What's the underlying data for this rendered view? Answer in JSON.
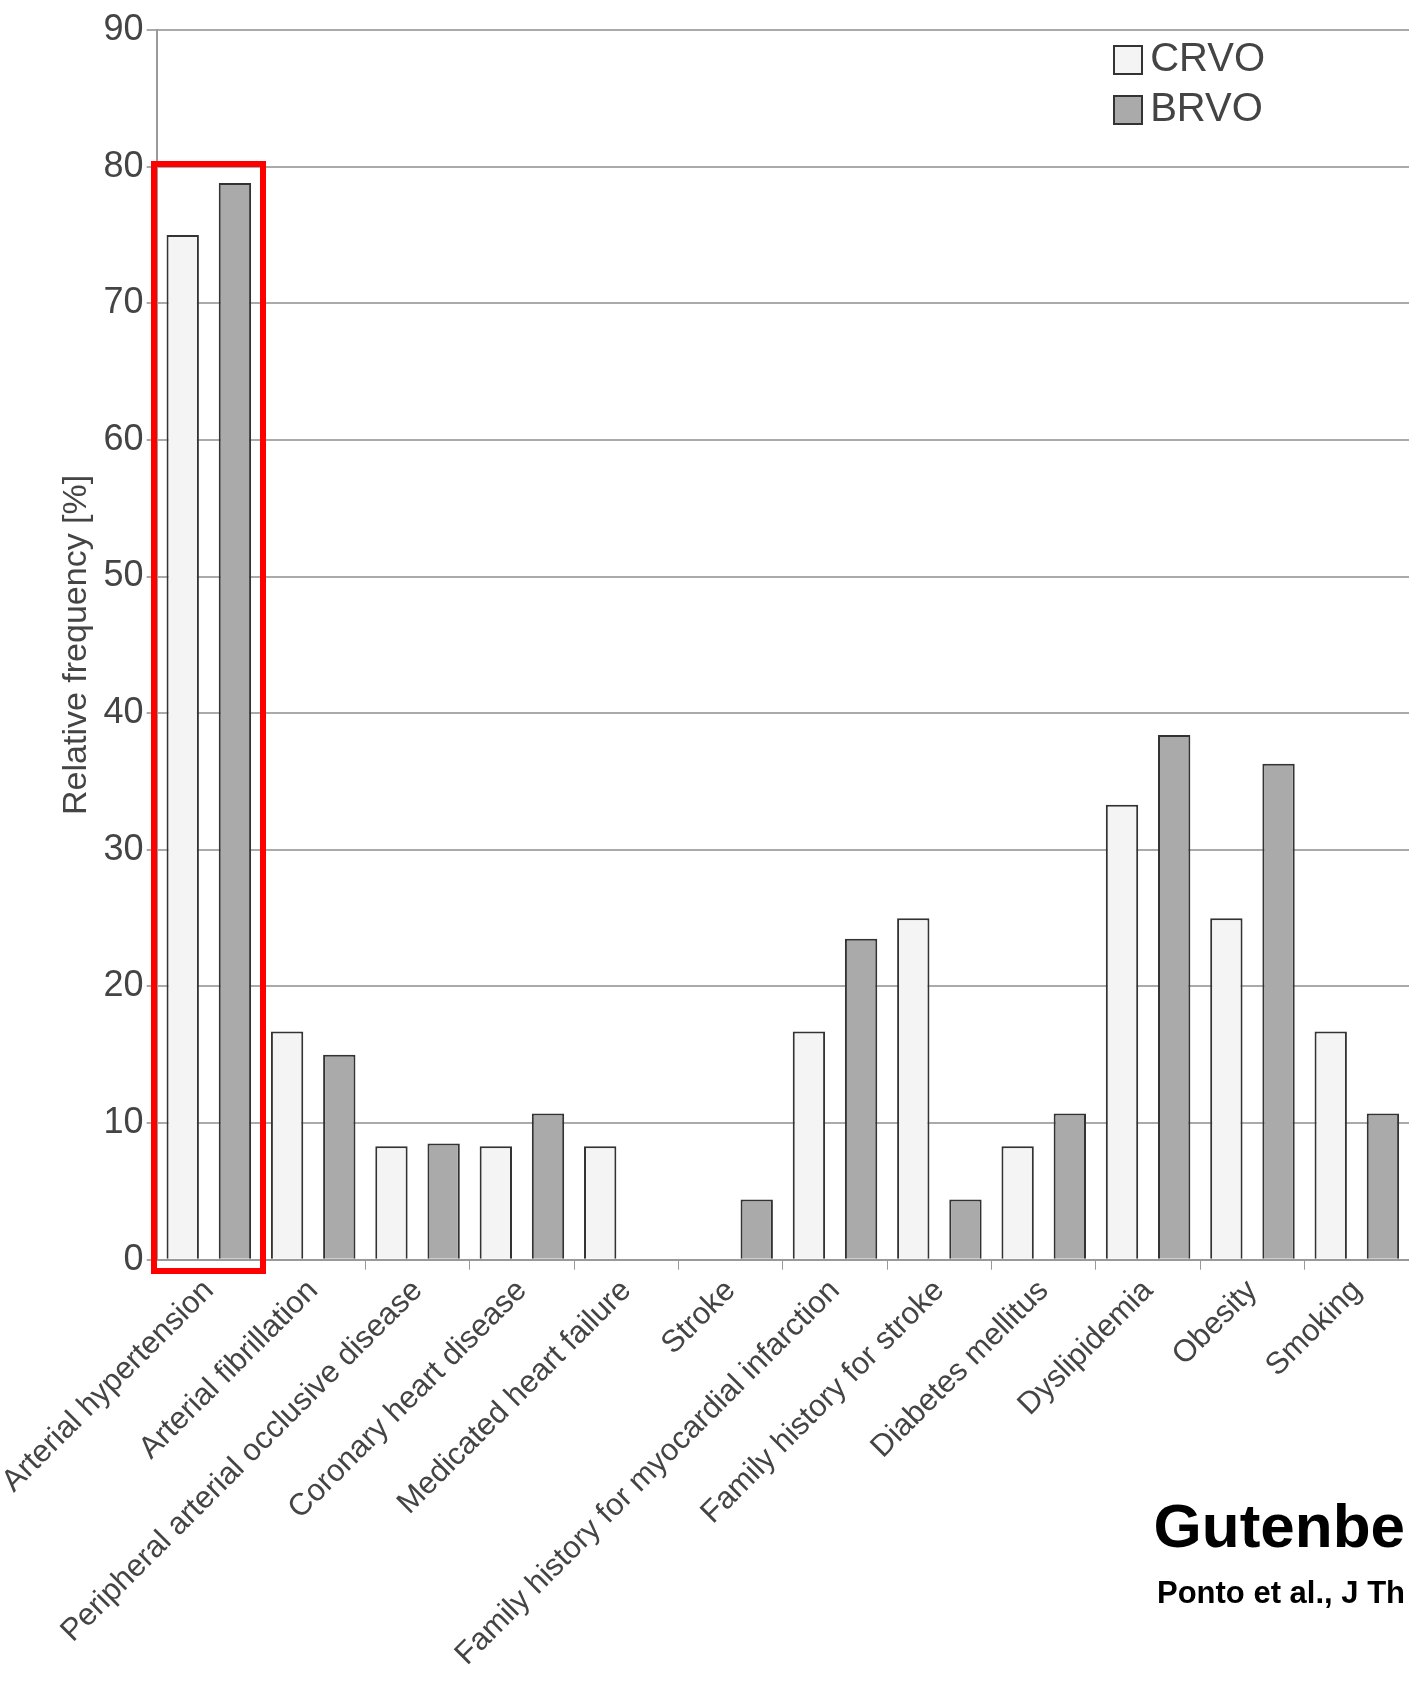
{
  "chart_data": {
    "type": "bar",
    "ylabel": "Relative frequency [%]",
    "categories": [
      "Arterial hypertension",
      "Arterial fibrillation",
      "Peripheral arterial occlusive disease",
      "Coronary heart disease",
      "Medicated heart failure",
      "Stroke",
      "Family history for myocardial infarction",
      "Family history for stroke",
      "Diabetes mellitus",
      "Dyslipidemia",
      "Obesity",
      "Smoking"
    ],
    "series": [
      {
        "name": "CRVO",
        "color": "#f4f4f4",
        "values": [
          75,
          16.7,
          8.3,
          8.3,
          8.3,
          0,
          16.7,
          25,
          8.3,
          33.3,
          25,
          16.7
        ]
      },
      {
        "name": "BRVO",
        "color": "#aaaaaa",
        "values": [
          78.8,
          15,
          8.5,
          10.7,
          0,
          4.4,
          23.5,
          4.4,
          10.7,
          38.4,
          36.3,
          10.7
        ]
      }
    ],
    "ylim": [
      0,
      90
    ],
    "yticks": [
      0,
      10,
      20,
      30,
      40,
      50,
      60,
      70,
      80,
      90
    ],
    "grid": "y",
    "legend": "top right",
    "annotations": [
      "Gutenbe",
      "Ponto et al., J Th"
    ]
  }
}
